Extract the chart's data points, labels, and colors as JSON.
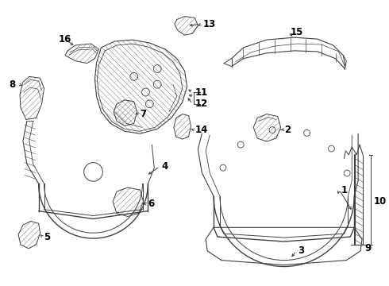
{
  "background_color": "#ffffff",
  "line_color": "#404040",
  "text_color": "#000000",
  "fig_width": 4.9,
  "fig_height": 3.6,
  "dpi": 100,
  "label_fontsize": 8.5
}
